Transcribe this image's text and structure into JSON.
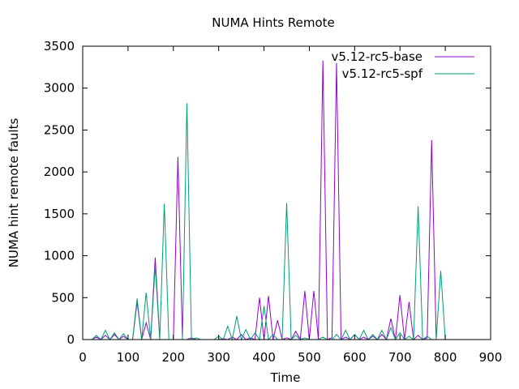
{
  "chart_data": {
    "type": "line",
    "title": "NUMA Hints Remote",
    "xlabel": "Time",
    "ylabel": "NUMA hint remote faults",
    "xlim": [
      0,
      900
    ],
    "ylim": [
      0,
      3500
    ],
    "xticks": [
      "0",
      "100",
      "200",
      "300",
      "400",
      "500",
      "600",
      "700",
      "800",
      "900"
    ],
    "yticks": [
      "0",
      "500",
      "1000",
      "1500",
      "2000",
      "2500",
      "3000",
      "3500"
    ],
    "grid": false,
    "legend_position": "top-right",
    "series": [
      {
        "name": "v5.12-rc5-base",
        "color": "#9400d3",
        "points": [
          [
            20,
            0
          ],
          [
            30,
            30
          ],
          [
            40,
            0
          ],
          [
            50,
            50
          ],
          [
            60,
            0
          ],
          [
            70,
            60
          ],
          [
            80,
            0
          ],
          [
            90,
            40
          ],
          [
            100,
            0
          ],
          [
            110,
            0
          ],
          [
            120,
            450
          ],
          [
            130,
            0
          ],
          [
            140,
            200
          ],
          [
            150,
            0
          ],
          [
            160,
            980
          ],
          [
            170,
            0
          ],
          [
            180,
            0
          ],
          [
            190,
            0
          ],
          [
            200,
            0
          ],
          [
            210,
            2180
          ],
          [
            220,
            0
          ],
          [
            230,
            0
          ],
          [
            240,
            20
          ],
          [
            250,
            0
          ],
          [
            260,
            0
          ],
          [
            270,
            0
          ],
          [
            280,
            0
          ],
          [
            290,
            0
          ],
          [
            300,
            0
          ],
          [
            310,
            10
          ],
          [
            320,
            0
          ],
          [
            330,
            30
          ],
          [
            340,
            0
          ],
          [
            350,
            60
          ],
          [
            360,
            0
          ],
          [
            370,
            20
          ],
          [
            380,
            0
          ],
          [
            390,
            500
          ],
          [
            400,
            0
          ],
          [
            410,
            520
          ],
          [
            420,
            0
          ],
          [
            430,
            230
          ],
          [
            440,
            0
          ],
          [
            450,
            20
          ],
          [
            460,
            0
          ],
          [
            470,
            100
          ],
          [
            480,
            0
          ],
          [
            490,
            580
          ],
          [
            500,
            0
          ],
          [
            510,
            580
          ],
          [
            520,
            0
          ],
          [
            530,
            3330
          ],
          [
            540,
            0
          ],
          [
            550,
            20
          ],
          [
            560,
            3300
          ],
          [
            570,
            0
          ],
          [
            580,
            30
          ],
          [
            590,
            0
          ],
          [
            600,
            60
          ],
          [
            610,
            0
          ],
          [
            620,
            30
          ],
          [
            630,
            0
          ],
          [
            640,
            40
          ],
          [
            650,
            0
          ],
          [
            660,
            60
          ],
          [
            670,
            0
          ],
          [
            680,
            250
          ],
          [
            690,
            0
          ],
          [
            700,
            530
          ],
          [
            710,
            0
          ],
          [
            720,
            450
          ],
          [
            730,
            0
          ],
          [
            740,
            50
          ],
          [
            750,
            0
          ],
          [
            760,
            20
          ],
          [
            770,
            2380
          ],
          [
            780,
            0
          ],
          [
            790,
            0
          ],
          [
            800,
            0
          ]
        ]
      },
      {
        "name": "v5.12-rc5-spf",
        "color": "#009e73",
        "points": [
          [
            20,
            0
          ],
          [
            30,
            50
          ],
          [
            40,
            0
          ],
          [
            50,
            110
          ],
          [
            60,
            0
          ],
          [
            70,
            80
          ],
          [
            80,
            0
          ],
          [
            90,
            70
          ],
          [
            100,
            0
          ],
          [
            110,
            0
          ],
          [
            120,
            490
          ],
          [
            130,
            0
          ],
          [
            140,
            560
          ],
          [
            150,
            0
          ],
          [
            160,
            880
          ],
          [
            170,
            0
          ],
          [
            180,
            1620
          ],
          [
            190,
            0
          ],
          [
            200,
            0
          ],
          [
            210,
            0
          ],
          [
            220,
            0
          ],
          [
            230,
            2820
          ],
          [
            240,
            0
          ],
          [
            250,
            20
          ],
          [
            260,
            0
          ],
          [
            270,
            0
          ],
          [
            280,
            0
          ],
          [
            290,
            0
          ],
          [
            300,
            40
          ],
          [
            310,
            0
          ],
          [
            320,
            160
          ],
          [
            330,
            0
          ],
          [
            340,
            280
          ],
          [
            350,
            0
          ],
          [
            360,
            120
          ],
          [
            370,
            0
          ],
          [
            380,
            80
          ],
          [
            390,
            0
          ],
          [
            400,
            400
          ],
          [
            410,
            0
          ],
          [
            420,
            60
          ],
          [
            430,
            0
          ],
          [
            440,
            0
          ],
          [
            450,
            1630
          ],
          [
            460,
            0
          ],
          [
            470,
            50
          ],
          [
            480,
            0
          ],
          [
            490,
            20
          ],
          [
            500,
            0
          ],
          [
            510,
            0
          ],
          [
            520,
            0
          ],
          [
            530,
            30
          ],
          [
            540,
            0
          ],
          [
            550,
            0
          ],
          [
            560,
            60
          ],
          [
            570,
            0
          ],
          [
            580,
            110
          ],
          [
            590,
            0
          ],
          [
            600,
            60
          ],
          [
            610,
            0
          ],
          [
            620,
            110
          ],
          [
            630,
            0
          ],
          [
            640,
            60
          ],
          [
            650,
            0
          ],
          [
            660,
            110
          ],
          [
            670,
            0
          ],
          [
            680,
            140
          ],
          [
            690,
            0
          ],
          [
            700,
            80
          ],
          [
            710,
            0
          ],
          [
            720,
            40
          ],
          [
            730,
            0
          ],
          [
            740,
            1590
          ],
          [
            750,
            0
          ],
          [
            760,
            40
          ],
          [
            770,
            0
          ],
          [
            780,
            0
          ],
          [
            790,
            820
          ],
          [
            800,
            0
          ]
        ]
      }
    ]
  }
}
